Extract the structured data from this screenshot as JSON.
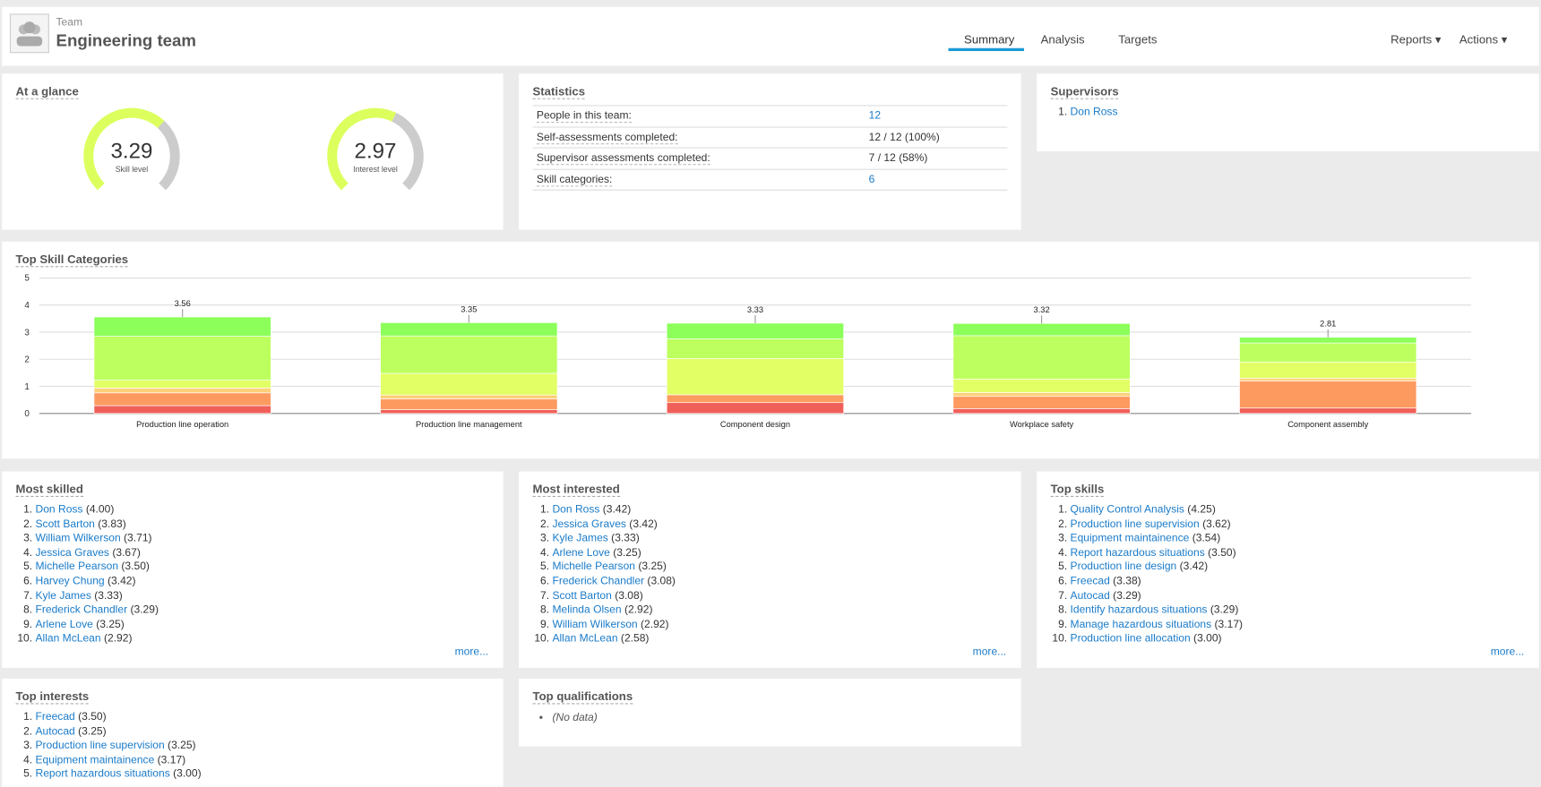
{
  "header": {
    "label": "Team",
    "title": "Engineering team",
    "tabs": [
      "Summary",
      "Analysis",
      "Targets"
    ],
    "menus": [
      "Reports",
      "Actions"
    ]
  },
  "glance": {
    "title": "At a glance",
    "range": [
      0,
      5
    ],
    "gauges": [
      {
        "value": 3.29,
        "label": "Skill level"
      },
      {
        "value": 2.97,
        "label": "Interest level"
      }
    ]
  },
  "statistics": {
    "title": "Statistics",
    "rows": [
      [
        "People in this team:",
        "12"
      ],
      [
        "Self-assessments completed:",
        "12 / 12 (100%)"
      ],
      [
        "Supervisor assessments completed:",
        "7 / 12 (58%)"
      ],
      [
        "Skill categories:",
        "6"
      ]
    ]
  },
  "supervisors": {
    "title": "Supervisors",
    "items": [
      "Don Ross"
    ]
  },
  "chart_data": {
    "type": "bar",
    "stacked": true,
    "title": "Top Skill Categories",
    "categories": [
      "Production line operation",
      "Production line management",
      "Component design",
      "Workplace safety",
      "Component assembly"
    ],
    "series": [
      {
        "color": "#f0605a",
        "values": [
          0.29,
          0.14,
          0.4,
          0.18,
          0.2
        ]
      },
      {
        "color": "#fd9a60",
        "values": [
          0.47,
          0.4,
          0.29,
          0.45,
          1.0
        ]
      },
      {
        "color": "#fdd07a",
        "values": [
          0.18,
          0.14,
          0,
          0.14,
          0.1
        ]
      },
      {
        "color": "#e2ff66",
        "values": [
          0.29,
          0.8,
          1.34,
          0.5,
          0.6
        ]
      },
      {
        "color": "#bdff5e",
        "values": [
          1.62,
          1.38,
          0.72,
          1.6,
          0.7
        ]
      },
      {
        "color": "#8cff5a",
        "values": [
          0.71,
          0.49,
          0.58,
          0.45,
          0.21
        ]
      }
    ],
    "totals": [
      3.56,
      3.35,
      3.33,
      3.32,
      2.81
    ],
    "ylim": [
      0,
      5
    ],
    "yticks": [
      0,
      1,
      2,
      3,
      4,
      5
    ],
    "grid": true
  },
  "most_skilled": {
    "title": "Most skilled",
    "items": [
      [
        "Don Ross",
        "(4.00)"
      ],
      [
        "Scott Barton",
        "(3.83)"
      ],
      [
        "William Wilkerson",
        "(3.71)"
      ],
      [
        "Jessica Graves",
        "(3.67)"
      ],
      [
        "Michelle Pearson",
        "(3.50)"
      ],
      [
        "Harvey Chung",
        "(3.42)"
      ],
      [
        "Kyle James",
        "(3.33)"
      ],
      [
        "Frederick Chandler",
        "(3.29)"
      ],
      [
        "Arlene Love",
        "(3.25)"
      ],
      [
        "Allan McLean",
        "(2.92)"
      ]
    ],
    "more": "more..."
  },
  "most_interested": {
    "title": "Most interested",
    "items": [
      [
        "Don Ross",
        "(3.42)"
      ],
      [
        "Jessica Graves",
        "(3.42)"
      ],
      [
        "Kyle James",
        "(3.33)"
      ],
      [
        "Arlene Love",
        "(3.25)"
      ],
      [
        "Michelle Pearson",
        "(3.25)"
      ],
      [
        "Frederick Chandler",
        "(3.08)"
      ],
      [
        "Scott Barton",
        "(3.08)"
      ],
      [
        "Melinda Olsen",
        "(2.92)"
      ],
      [
        "William Wilkerson",
        "(2.92)"
      ],
      [
        "Allan McLean",
        "(2.58)"
      ]
    ],
    "more": "more..."
  },
  "top_skills": {
    "title": "Top skills",
    "items": [
      [
        "Quality Control Analysis",
        "(4.25)"
      ],
      [
        "Production line supervision",
        "(3.62)"
      ],
      [
        "Equipment maintainence",
        "(3.54)"
      ],
      [
        "Report hazardous situations",
        "(3.50)"
      ],
      [
        "Production line design",
        "(3.42)"
      ],
      [
        "Freecad",
        "(3.38)"
      ],
      [
        "Autocad",
        "(3.29)"
      ],
      [
        "Identify hazardous situations",
        "(3.29)"
      ],
      [
        "Manage hazardous situations",
        "(3.17)"
      ],
      [
        "Production line allocation",
        "(3.00)"
      ]
    ],
    "more": "more..."
  },
  "top_interests": {
    "title": "Top interests",
    "items": [
      [
        "Freecad",
        "(3.50)"
      ],
      [
        "Autocad",
        "(3.25)"
      ],
      [
        "Production line supervision",
        "(3.25)"
      ],
      [
        "Equipment maintainence",
        "(3.17)"
      ],
      [
        "Report hazardous situations",
        "(3.00)"
      ]
    ]
  },
  "top_qualifications": {
    "title": "Top qualifications",
    "items": [
      "(No data)"
    ]
  }
}
